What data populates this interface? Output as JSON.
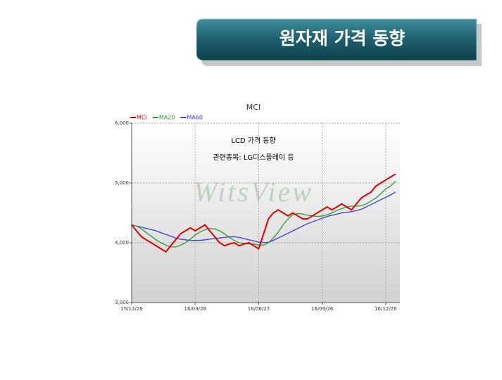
{
  "header": {
    "title": "원자재 가격 동향"
  },
  "chart_data": {
    "type": "line",
    "title": "MCI",
    "annotations": [
      "LCD 가격 동향",
      "관련종목: LG디스플레이 등"
    ],
    "watermark": "WitsView",
    "categories": [
      "15/12/28",
      null,
      null,
      null,
      null,
      null,
      null,
      null,
      null,
      null,
      null,
      null,
      null,
      "16/03/28",
      null,
      null,
      null,
      null,
      null,
      null,
      null,
      null,
      null,
      null,
      null,
      null,
      "16/06/27",
      null,
      null,
      null,
      null,
      null,
      null,
      null,
      null,
      null,
      null,
      null,
      null,
      "16/09/26",
      null,
      null,
      null,
      null,
      null,
      null,
      null,
      null,
      null,
      null,
      null,
      null,
      "16/12/26",
      null,
      null
    ],
    "series": [
      {
        "name": "MCI",
        "color": "#e00000",
        "values": [
          4300,
          4200,
          4100,
          4050,
          4000,
          3950,
          3900,
          3850,
          3950,
          4050,
          4150,
          4200,
          4250,
          4200,
          4250,
          4300,
          4200,
          4100,
          4000,
          3950,
          3980,
          4000,
          3950,
          3980,
          4000,
          3950,
          3900,
          4150,
          4400,
          4500,
          4550,
          4500,
          4450,
          4500,
          4450,
          4400,
          4400,
          4450,
          4500,
          4550,
          4600,
          4550,
          4600,
          4650,
          4600,
          4550,
          4650,
          4750,
          4800,
          4850,
          4950,
          5000,
          5050,
          5100,
          5150
        ]
      },
      {
        "name": "MA20",
        "color": "#2a9a2a",
        "values": [
          4300,
          4280,
          4230,
          4170,
          4110,
          4050,
          4000,
          3960,
          3930,
          3930,
          3960,
          4000,
          4060,
          4130,
          4180,
          4220,
          4240,
          4230,
          4200,
          4150,
          4090,
          4040,
          4000,
          3990,
          3980,
          3980,
          3960,
          3960,
          4000,
          4080,
          4180,
          4300,
          4400,
          4470,
          4490,
          4480,
          4460,
          4450,
          4440,
          4450,
          4470,
          4500,
          4540,
          4570,
          4600,
          4610,
          4610,
          4620,
          4650,
          4700,
          4750,
          4820,
          4900,
          4950,
          5030
        ]
      },
      {
        "name": "MA60",
        "color": "#3838dd",
        "values": [
          4300,
          4280,
          4260,
          4240,
          4220,
          4200,
          4170,
          4140,
          4110,
          4080,
          4060,
          4050,
          4040,
          4040,
          4040,
          4050,
          4060,
          4070,
          4080,
          4090,
          4100,
          4100,
          4090,
          4070,
          4050,
          4030,
          4010,
          4000,
          4010,
          4040,
          4080,
          4120,
          4160,
          4200,
          4240,
          4280,
          4320,
          4350,
          4380,
          4410,
          4440,
          4460,
          4480,
          4500,
          4510,
          4520,
          4540,
          4560,
          4600,
          4640,
          4680,
          4720,
          4760,
          4800,
          4850
        ]
      }
    ],
    "ylim": [
      3000,
      6000
    ],
    "yticks": [
      {
        "value": 3000,
        "label": "3,000"
      },
      {
        "value": 4000,
        "label": "4,000"
      },
      {
        "value": 5000,
        "label": "5,000"
      },
      {
        "value": 6000,
        "label": "6,000"
      }
    ],
    "grid": true
  }
}
